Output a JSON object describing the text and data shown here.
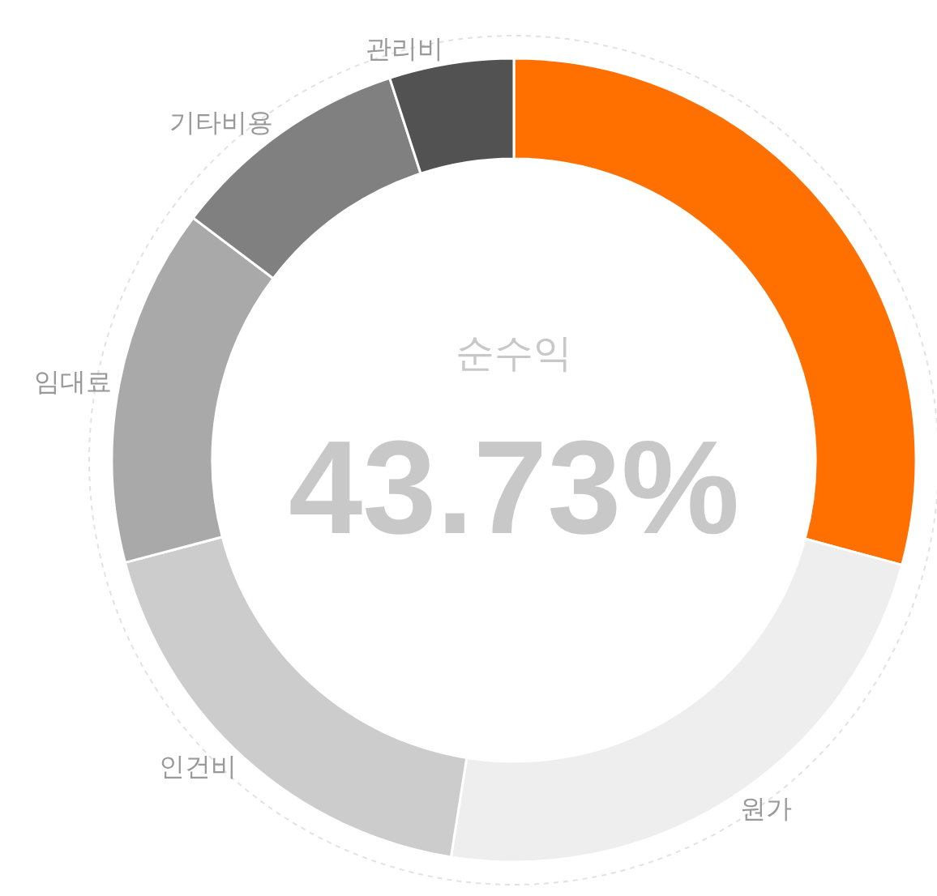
{
  "chart_data": {
    "type": "donut",
    "categories": [
      null,
      "원가",
      "인건비",
      "임대료",
      "기타비용",
      "관리비"
    ],
    "values": [
      29.2,
      23.3,
      18.4,
      14.4,
      9.7,
      5.0
    ],
    "colors": [
      "#ff7000",
      "#eeeeee",
      "#cbcccb",
      "#a9a9a9",
      "#808080",
      "#535253"
    ],
    "annotations": [
      "순수익",
      "43.73%"
    ],
    "legend": false
  }
}
